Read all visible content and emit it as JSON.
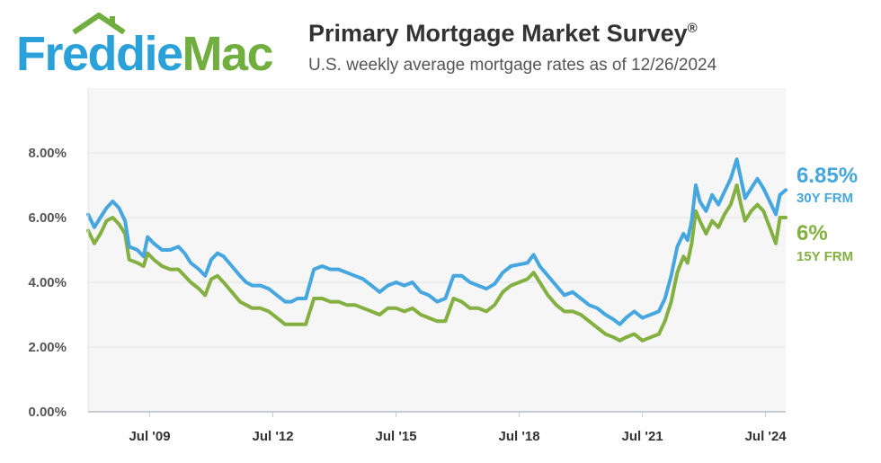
{
  "brand": {
    "name_part1": "Freddie",
    "name_part2": "Mac",
    "color_primary": "#2aa1d8",
    "color_secondary": "#6fae3f",
    "icon": "house-roof-icon"
  },
  "header": {
    "title": "Primary Mortgage Market Survey",
    "title_mark": "®",
    "subtitle": "U.S. weekly average mortgage rates as of 12/26/2024"
  },
  "end_labels": [
    {
      "value": "6.85%",
      "name": "30Y FRM",
      "color": "#46a6e0"
    },
    {
      "value": "6%",
      "name": "15Y FRM",
      "color": "#84b041"
    }
  ],
  "chart_data": {
    "type": "line",
    "title": "Primary Mortgage Market Survey",
    "subtitle": "U.S. weekly average mortgage rates as of 12/26/2024",
    "x_axis": {
      "range": [
        2008.0,
        2024.99
      ],
      "ticks": [
        {
          "value": 2009.5,
          "label": "Jul '09"
        },
        {
          "value": 2012.5,
          "label": "Jul '12"
        },
        {
          "value": 2015.5,
          "label": "Jul '15"
        },
        {
          "value": 2018.5,
          "label": "Jul '18"
        },
        {
          "value": 2021.5,
          "label": "Jul '21"
        },
        {
          "value": 2024.5,
          "label": "Jul '24"
        }
      ]
    },
    "y_axis": {
      "range": [
        0,
        10
      ],
      "ticks": [
        "0.00%",
        "2.00%",
        "4.00%",
        "6.00%",
        "8.00%"
      ],
      "tick_values": [
        0,
        2,
        4,
        6,
        8
      ],
      "grid": true
    },
    "legend": "right-end-labels",
    "series": [
      {
        "name": "30Y FRM",
        "color": "#46a6e0",
        "points": [
          [
            2008.0,
            6.1
          ],
          [
            2008.15,
            5.7
          ],
          [
            2008.3,
            6.0
          ],
          [
            2008.45,
            6.3
          ],
          [
            2008.6,
            6.5
          ],
          [
            2008.75,
            6.3
          ],
          [
            2008.9,
            5.9
          ],
          [
            2009.0,
            5.1
          ],
          [
            2009.2,
            5.0
          ],
          [
            2009.35,
            4.8
          ],
          [
            2009.45,
            5.4
          ],
          [
            2009.6,
            5.2
          ],
          [
            2009.8,
            5.0
          ],
          [
            2010.0,
            5.0
          ],
          [
            2010.2,
            5.1
          ],
          [
            2010.35,
            4.9
          ],
          [
            2010.5,
            4.6
          ],
          [
            2010.7,
            4.4
          ],
          [
            2010.85,
            4.2
          ],
          [
            2011.0,
            4.7
          ],
          [
            2011.15,
            4.9
          ],
          [
            2011.3,
            4.8
          ],
          [
            2011.5,
            4.5
          ],
          [
            2011.7,
            4.2
          ],
          [
            2011.85,
            4.0
          ],
          [
            2012.0,
            3.9
          ],
          [
            2012.2,
            3.9
          ],
          [
            2012.4,
            3.8
          ],
          [
            2012.6,
            3.6
          ],
          [
            2012.8,
            3.4
          ],
          [
            2012.95,
            3.4
          ],
          [
            2013.1,
            3.5
          ],
          [
            2013.3,
            3.5
          ],
          [
            2013.5,
            4.4
          ],
          [
            2013.7,
            4.5
          ],
          [
            2013.9,
            4.4
          ],
          [
            2014.1,
            4.4
          ],
          [
            2014.3,
            4.3
          ],
          [
            2014.5,
            4.2
          ],
          [
            2014.7,
            4.1
          ],
          [
            2014.9,
            3.9
          ],
          [
            2015.1,
            3.7
          ],
          [
            2015.3,
            3.9
          ],
          [
            2015.5,
            4.0
          ],
          [
            2015.7,
            3.9
          ],
          [
            2015.9,
            4.0
          ],
          [
            2016.1,
            3.7
          ],
          [
            2016.3,
            3.6
          ],
          [
            2016.5,
            3.4
          ],
          [
            2016.7,
            3.5
          ],
          [
            2016.9,
            4.2
          ],
          [
            2017.1,
            4.2
          ],
          [
            2017.3,
            4.0
          ],
          [
            2017.5,
            3.9
          ],
          [
            2017.7,
            3.8
          ],
          [
            2017.9,
            3.95
          ],
          [
            2018.1,
            4.3
          ],
          [
            2018.3,
            4.5
          ],
          [
            2018.5,
            4.55
          ],
          [
            2018.7,
            4.6
          ],
          [
            2018.85,
            4.85
          ],
          [
            2019.0,
            4.5
          ],
          [
            2019.2,
            4.2
          ],
          [
            2019.4,
            3.9
          ],
          [
            2019.6,
            3.6
          ],
          [
            2019.8,
            3.7
          ],
          [
            2020.0,
            3.5
          ],
          [
            2020.2,
            3.3
          ],
          [
            2020.4,
            3.2
          ],
          [
            2020.6,
            3.0
          ],
          [
            2020.8,
            2.85
          ],
          [
            2020.95,
            2.7
          ],
          [
            2021.1,
            2.9
          ],
          [
            2021.3,
            3.1
          ],
          [
            2021.5,
            2.9
          ],
          [
            2021.7,
            3.0
          ],
          [
            2021.9,
            3.1
          ],
          [
            2022.05,
            3.5
          ],
          [
            2022.2,
            4.2
          ],
          [
            2022.35,
            5.1
          ],
          [
            2022.5,
            5.5
          ],
          [
            2022.6,
            5.3
          ],
          [
            2022.7,
            5.9
          ],
          [
            2022.8,
            7.0
          ],
          [
            2022.9,
            6.5
          ],
          [
            2023.05,
            6.2
          ],
          [
            2023.2,
            6.7
          ],
          [
            2023.35,
            6.4
          ],
          [
            2023.5,
            6.8
          ],
          [
            2023.65,
            7.2
          ],
          [
            2023.8,
            7.8
          ],
          [
            2023.9,
            7.2
          ],
          [
            2024.0,
            6.6
          ],
          [
            2024.15,
            6.9
          ],
          [
            2024.3,
            7.2
          ],
          [
            2024.45,
            6.9
          ],
          [
            2024.6,
            6.5
          ],
          [
            2024.75,
            6.1
          ],
          [
            2024.85,
            6.7
          ],
          [
            2024.99,
            6.85
          ]
        ]
      },
      {
        "name": "15Y FRM",
        "color": "#84b041",
        "points": [
          [
            2008.0,
            5.6
          ],
          [
            2008.15,
            5.2
          ],
          [
            2008.3,
            5.5
          ],
          [
            2008.45,
            5.9
          ],
          [
            2008.6,
            6.0
          ],
          [
            2008.75,
            5.8
          ],
          [
            2008.9,
            5.5
          ],
          [
            2009.0,
            4.7
          ],
          [
            2009.2,
            4.6
          ],
          [
            2009.35,
            4.5
          ],
          [
            2009.45,
            4.9
          ],
          [
            2009.6,
            4.7
          ],
          [
            2009.8,
            4.5
          ],
          [
            2010.0,
            4.4
          ],
          [
            2010.2,
            4.4
          ],
          [
            2010.35,
            4.2
          ],
          [
            2010.5,
            4.0
          ],
          [
            2010.7,
            3.8
          ],
          [
            2010.85,
            3.6
          ],
          [
            2011.0,
            4.1
          ],
          [
            2011.15,
            4.2
          ],
          [
            2011.3,
            4.0
          ],
          [
            2011.5,
            3.7
          ],
          [
            2011.7,
            3.4
          ],
          [
            2011.85,
            3.3
          ],
          [
            2012.0,
            3.2
          ],
          [
            2012.2,
            3.2
          ],
          [
            2012.4,
            3.1
          ],
          [
            2012.6,
            2.9
          ],
          [
            2012.8,
            2.7
          ],
          [
            2012.95,
            2.7
          ],
          [
            2013.1,
            2.7
          ],
          [
            2013.3,
            2.7
          ],
          [
            2013.5,
            3.5
          ],
          [
            2013.7,
            3.5
          ],
          [
            2013.9,
            3.4
          ],
          [
            2014.1,
            3.4
          ],
          [
            2014.3,
            3.3
          ],
          [
            2014.5,
            3.3
          ],
          [
            2014.7,
            3.2
          ],
          [
            2014.9,
            3.1
          ],
          [
            2015.1,
            3.0
          ],
          [
            2015.3,
            3.2
          ],
          [
            2015.5,
            3.2
          ],
          [
            2015.7,
            3.1
          ],
          [
            2015.9,
            3.2
          ],
          [
            2016.1,
            3.0
          ],
          [
            2016.3,
            2.9
          ],
          [
            2016.5,
            2.8
          ],
          [
            2016.7,
            2.8
          ],
          [
            2016.9,
            3.5
          ],
          [
            2017.1,
            3.4
          ],
          [
            2017.3,
            3.2
          ],
          [
            2017.5,
            3.2
          ],
          [
            2017.7,
            3.1
          ],
          [
            2017.9,
            3.3
          ],
          [
            2018.1,
            3.7
          ],
          [
            2018.3,
            3.9
          ],
          [
            2018.5,
            4.0
          ],
          [
            2018.7,
            4.1
          ],
          [
            2018.85,
            4.3
          ],
          [
            2019.0,
            4.0
          ],
          [
            2019.2,
            3.6
          ],
          [
            2019.4,
            3.3
          ],
          [
            2019.6,
            3.1
          ],
          [
            2019.8,
            3.1
          ],
          [
            2020.0,
            3.0
          ],
          [
            2020.2,
            2.8
          ],
          [
            2020.4,
            2.6
          ],
          [
            2020.6,
            2.4
          ],
          [
            2020.8,
            2.3
          ],
          [
            2020.95,
            2.2
          ],
          [
            2021.1,
            2.3
          ],
          [
            2021.3,
            2.4
          ],
          [
            2021.5,
            2.2
          ],
          [
            2021.7,
            2.3
          ],
          [
            2021.9,
            2.4
          ],
          [
            2022.05,
            2.8
          ],
          [
            2022.2,
            3.4
          ],
          [
            2022.35,
            4.3
          ],
          [
            2022.5,
            4.8
          ],
          [
            2022.6,
            4.6
          ],
          [
            2022.7,
            5.2
          ],
          [
            2022.8,
            6.2
          ],
          [
            2022.9,
            5.9
          ],
          [
            2023.05,
            5.5
          ],
          [
            2023.2,
            5.9
          ],
          [
            2023.35,
            5.7
          ],
          [
            2023.5,
            6.1
          ],
          [
            2023.65,
            6.4
          ],
          [
            2023.8,
            7.0
          ],
          [
            2023.9,
            6.4
          ],
          [
            2024.0,
            5.9
          ],
          [
            2024.15,
            6.2
          ],
          [
            2024.3,
            6.4
          ],
          [
            2024.45,
            6.2
          ],
          [
            2024.6,
            5.7
          ],
          [
            2024.75,
            5.2
          ],
          [
            2024.85,
            6.0
          ],
          [
            2024.99,
            6.0
          ]
        ]
      }
    ]
  }
}
